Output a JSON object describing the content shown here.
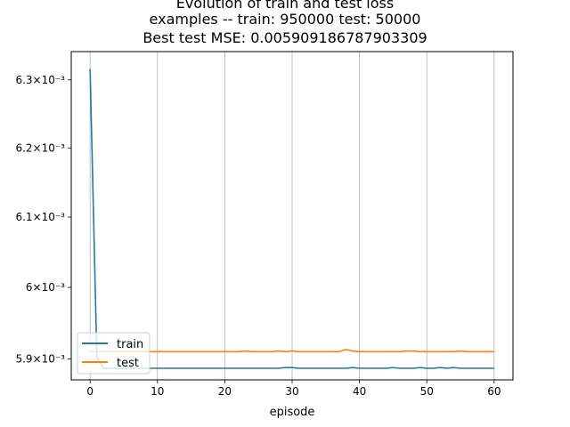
{
  "chart_data": {
    "type": "line",
    "title_lines": [
      "Evolution of train and test loss",
      "examples -- train: 950000 test: 50000",
      "Best test MSE: 0.005909186787903309"
    ],
    "xlabel": "episode",
    "ylabel": "",
    "xlim": [
      -2.8,
      62.8
    ],
    "ylim": [
      0.005871,
      0.006342
    ],
    "y_scale": "log",
    "grid": "x-only",
    "legend_position": "lower-left",
    "xticks": [
      0,
      10,
      20,
      30,
      40,
      50,
      60
    ],
    "xtick_labels": [
      "0",
      "10",
      "20",
      "30",
      "40",
      "50",
      "60"
    ],
    "yticks": [
      0.0059,
      0.006,
      0.0061,
      0.0062,
      0.0063
    ],
    "ytick_labels": [
      "5.9×10⁻³",
      "6×10⁻³",
      "6.1×10⁻³",
      "6.2×10⁻³",
      "6.3×10⁻³"
    ],
    "x": [
      0,
      1,
      2,
      3,
      4,
      5,
      6,
      7,
      8,
      9,
      10,
      11,
      12,
      13,
      14,
      15,
      16,
      17,
      18,
      19,
      20,
      21,
      22,
      23,
      24,
      25,
      26,
      27,
      28,
      29,
      30,
      31,
      32,
      33,
      34,
      35,
      36,
      37,
      38,
      39,
      40,
      41,
      42,
      43,
      44,
      45,
      46,
      47,
      48,
      49,
      50,
      51,
      52,
      53,
      54,
      55,
      56,
      57,
      58,
      59,
      60
    ],
    "series": [
      {
        "name": "train",
        "color": "#1f77b4",
        "values": [
          0.006316,
          0.005903,
          0.005887,
          0.005887,
          0.005887,
          0.005887,
          0.005887,
          0.005887,
          0.005887,
          0.005887,
          0.005887,
          0.005887,
          0.005887,
          0.005887,
          0.005887,
          0.005887,
          0.005887,
          0.005887,
          0.005887,
          0.005887,
          0.005887,
          0.005887,
          0.005887,
          0.005887,
          0.005887,
          0.005887,
          0.005887,
          0.005887,
          0.005887,
          0.005888,
          0.005888,
          0.005887,
          0.005887,
          0.005887,
          0.005887,
          0.005887,
          0.005887,
          0.005887,
          0.005887,
          0.005888,
          0.005887,
          0.005887,
          0.005887,
          0.005887,
          0.005887,
          0.005888,
          0.005887,
          0.005887,
          0.005887,
          0.005888,
          0.005887,
          0.005887,
          0.005888,
          0.005887,
          0.005888,
          0.005887,
          0.005887,
          0.005887,
          0.005887,
          0.005887,
          0.005887
        ]
      },
      {
        "name": "test",
        "color": "#ff7f0e",
        "values": [
          0.00591,
          0.00591,
          0.00591,
          0.00591,
          0.00591,
          0.00591,
          0.00591,
          0.00591,
          0.00591,
          0.00591,
          0.00591,
          0.00591,
          0.00591,
          0.00591,
          0.00591,
          0.00591,
          0.00591,
          0.00591,
          0.00591,
          0.00591,
          0.00591,
          0.00591,
          0.00591,
          0.005911,
          0.00591,
          0.00591,
          0.00591,
          0.00591,
          0.005911,
          0.00591,
          0.005911,
          0.00591,
          0.00591,
          0.00591,
          0.00591,
          0.00591,
          0.00591,
          0.00591,
          0.005913,
          0.005911,
          0.00591,
          0.00591,
          0.00591,
          0.00591,
          0.00591,
          0.00591,
          0.00591,
          0.005911,
          0.005911,
          0.00591,
          0.00591,
          0.00591,
          0.00591,
          0.00591,
          0.00591,
          0.005911,
          0.00591,
          0.00591,
          0.00591,
          0.00591,
          0.00591
        ]
      }
    ]
  }
}
